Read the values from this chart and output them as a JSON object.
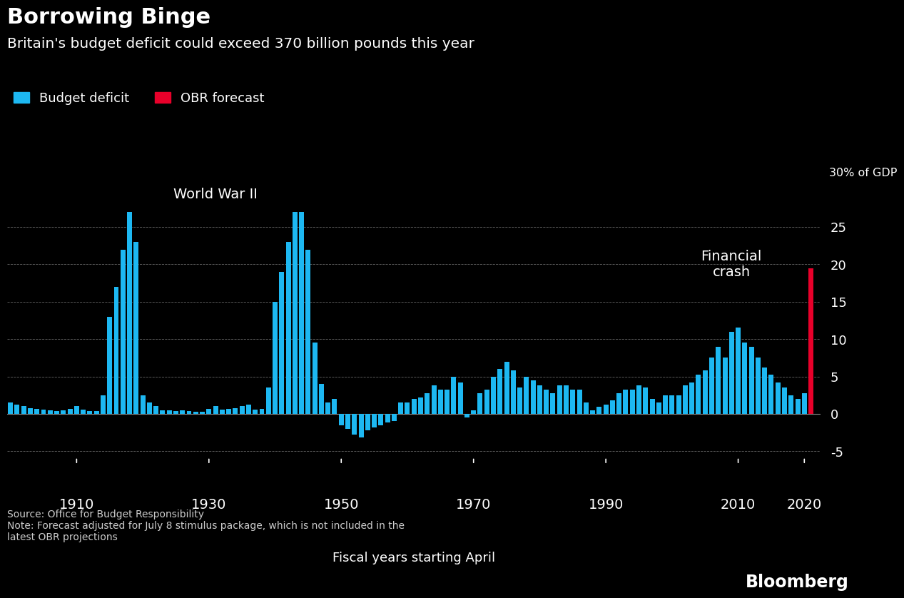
{
  "title_main": "Borrowing Binge",
  "title_sub": "Britain's budget deficit could exceed 370 billion pounds this year",
  "legend_blue": "Budget deficit",
  "legend_red": "OBR forecast",
  "xlabel": "Fiscal years starting April",
  "annotation_wwii": "World War II",
  "annotation_financial": "Financial\ncrash",
  "annotation_30pct": "30% of GDP",
  "source_text": "Source: Office for Budget Responsibility\nNote: Forecast adjusted for July 8 stimulus package, which is not included in the\nlatest OBR projections",
  "bloomberg_text": "Bloomberg",
  "bg_color": "#000000",
  "bar_color_blue": "#1DB8F2",
  "bar_color_red": "#E8002A",
  "text_color": "#FFFFFF",
  "grid_color": "#666666",
  "yticks": [
    -5,
    0,
    5,
    10,
    15,
    20,
    25
  ],
  "ylim": [
    -7.5,
    33
  ],
  "xlim": [
    1899.5,
    2022.5
  ],
  "xtick_years": [
    1910,
    1930,
    1950,
    1970,
    1990,
    2010,
    2020
  ],
  "data": {
    "years": [
      1900,
      1901,
      1902,
      1903,
      1904,
      1905,
      1906,
      1907,
      1908,
      1909,
      1910,
      1911,
      1912,
      1913,
      1914,
      1915,
      1916,
      1917,
      1918,
      1919,
      1920,
      1921,
      1922,
      1923,
      1924,
      1925,
      1926,
      1927,
      1928,
      1929,
      1930,
      1931,
      1932,
      1933,
      1934,
      1935,
      1936,
      1937,
      1938,
      1939,
      1940,
      1941,
      1942,
      1943,
      1944,
      1945,
      1946,
      1947,
      1948,
      1949,
      1950,
      1951,
      1952,
      1953,
      1954,
      1955,
      1956,
      1957,
      1958,
      1959,
      1960,
      1961,
      1962,
      1963,
      1964,
      1965,
      1966,
      1967,
      1968,
      1969,
      1970,
      1971,
      1972,
      1973,
      1974,
      1975,
      1976,
      1977,
      1978,
      1979,
      1980,
      1981,
      1982,
      1983,
      1984,
      1985,
      1986,
      1987,
      1988,
      1989,
      1990,
      1991,
      1992,
      1993,
      1994,
      1995,
      1996,
      1997,
      1998,
      1999,
      2000,
      2001,
      2002,
      2003,
      2004,
      2005,
      2006,
      2007,
      2008,
      2009,
      2010,
      2011,
      2012,
      2013,
      2014,
      2015,
      2016,
      2017,
      2018,
      2019,
      2020
    ],
    "values": [
      1.5,
      1.2,
      1.0,
      0.8,
      0.7,
      0.6,
      0.5,
      0.4,
      0.5,
      0.7,
      1.0,
      0.6,
      0.4,
      0.4,
      2.5,
      13.0,
      17.0,
      22.0,
      27.0,
      23.0,
      2.5,
      1.5,
      1.0,
      0.5,
      0.5,
      0.4,
      0.5,
      0.4,
      0.3,
      0.3,
      0.7,
      1.0,
      0.6,
      0.7,
      0.8,
      1.0,
      1.2,
      0.6,
      0.7,
      3.5,
      15.0,
      19.0,
      23.0,
      27.0,
      27.0,
      22.0,
      9.5,
      4.0,
      1.5,
      2.0,
      -1.5,
      -2.0,
      -2.8,
      -3.2,
      -2.2,
      -1.8,
      -1.5,
      -1.2,
      -1.0,
      1.5,
      1.5,
      2.0,
      2.2,
      2.8,
      3.8,
      3.2,
      3.2,
      5.0,
      4.2,
      -0.5,
      0.5,
      2.8,
      3.2,
      5.0,
      6.0,
      7.0,
      5.8,
      3.5,
      5.0,
      4.5,
      3.8,
      3.2,
      2.8,
      3.8,
      3.8,
      3.2,
      3.2,
      1.5,
      0.5,
      0.9,
      1.2,
      1.8,
      2.8,
      3.2,
      3.2,
      3.8,
      3.5,
      2.0,
      1.5,
      2.5,
      2.5,
      2.5,
      3.8,
      4.2,
      5.2,
      5.8,
      7.5,
      9.0,
      7.5,
      11.0,
      11.5,
      9.5,
      9.0,
      7.5,
      6.2,
      5.2,
      4.2,
      3.5,
      2.5,
      2.0,
      2.8
    ],
    "obr_forecast_year": 2021,
    "obr_forecast_value": 19.5
  }
}
